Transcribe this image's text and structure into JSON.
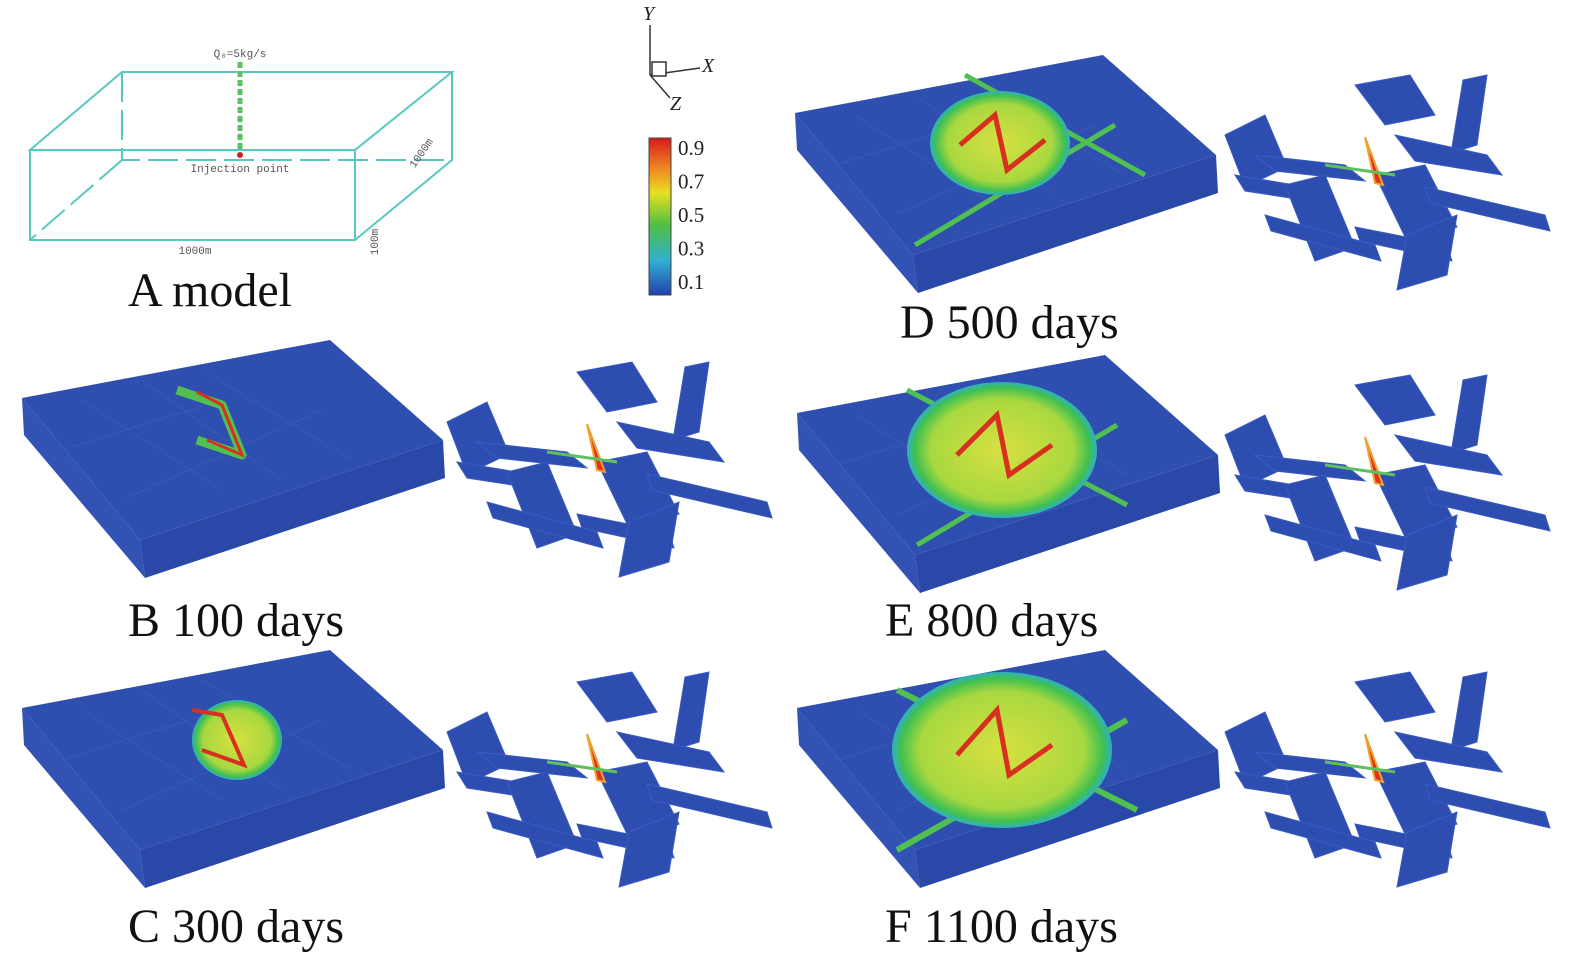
{
  "panels": [
    {
      "label": "A model",
      "injection_rate": "Q₀=5kg/s",
      "injection_point": "Injection point",
      "length_x": "1000m",
      "length_z": "1000m",
      "height": "100m"
    },
    {
      "label": "B 100 days"
    },
    {
      "label": "C 300 days"
    },
    {
      "label": "D 500 days"
    },
    {
      "label": "E 800 days"
    },
    {
      "label": "F 1100 days"
    }
  ],
  "axes": {
    "y": "Y",
    "x": "X",
    "z": "Z"
  },
  "colorbar": {
    "ticks": [
      "0.9",
      "0.7",
      "0.5",
      "0.3",
      "0.1"
    ]
  }
}
